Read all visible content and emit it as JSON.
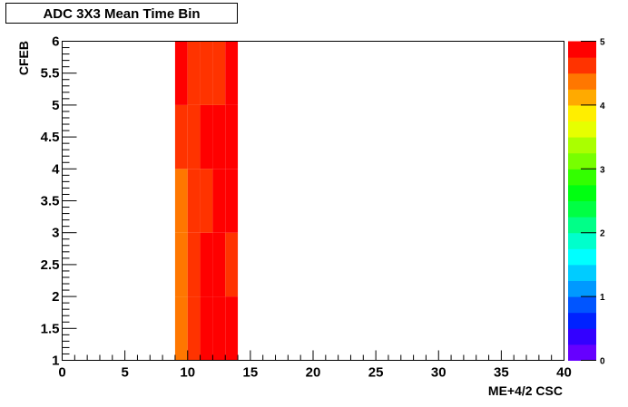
{
  "chart_data": {
    "type": "heatmap",
    "title": "ADC 3X3 Mean Time Bin",
    "xlabel": "ME+4/2 CSC",
    "ylabel": "CFEB",
    "xlim": [
      0,
      40
    ],
    "ylim": [
      1,
      6
    ],
    "zlim": [
      0,
      5
    ],
    "x_ticks": [
      "0",
      "5",
      "10",
      "15",
      "20",
      "25",
      "30",
      "35",
      "40"
    ],
    "y_ticks": [
      "1",
      "1.5",
      "2",
      "2.5",
      "3",
      "3.5",
      "4",
      "4.5",
      "5",
      "5.5",
      "6"
    ],
    "z_ticks": [
      "0",
      "1",
      "2",
      "3",
      "4",
      "5"
    ],
    "x_bins": [
      9,
      10,
      11,
      12,
      13
    ],
    "y_bins": [
      1,
      2,
      3,
      4,
      5
    ],
    "values": [
      [
        4.4,
        4.6,
        4.9,
        4.9,
        4.9
      ],
      [
        4.4,
        4.6,
        4.9,
        4.9,
        4.6
      ],
      [
        4.4,
        4.6,
        4.6,
        4.9,
        4.9
      ],
      [
        4.6,
        4.6,
        4.9,
        4.9,
        4.9
      ],
      [
        4.9,
        4.6,
        4.6,
        4.6,
        4.9
      ]
    ],
    "palette": [
      "#6600ff",
      "#3300ff",
      "#0022ff",
      "#0055ff",
      "#0099ff",
      "#00ccff",
      "#00ffff",
      "#00ffcc",
      "#00ff88",
      "#00ff44",
      "#00ff11",
      "#33ff00",
      "#77ff00",
      "#aaff00",
      "#e6ff00",
      "#ffee00",
      "#ffaa00",
      "#ff7700",
      "#ff3300",
      "#ff0000"
    ],
    "grid": false
  }
}
